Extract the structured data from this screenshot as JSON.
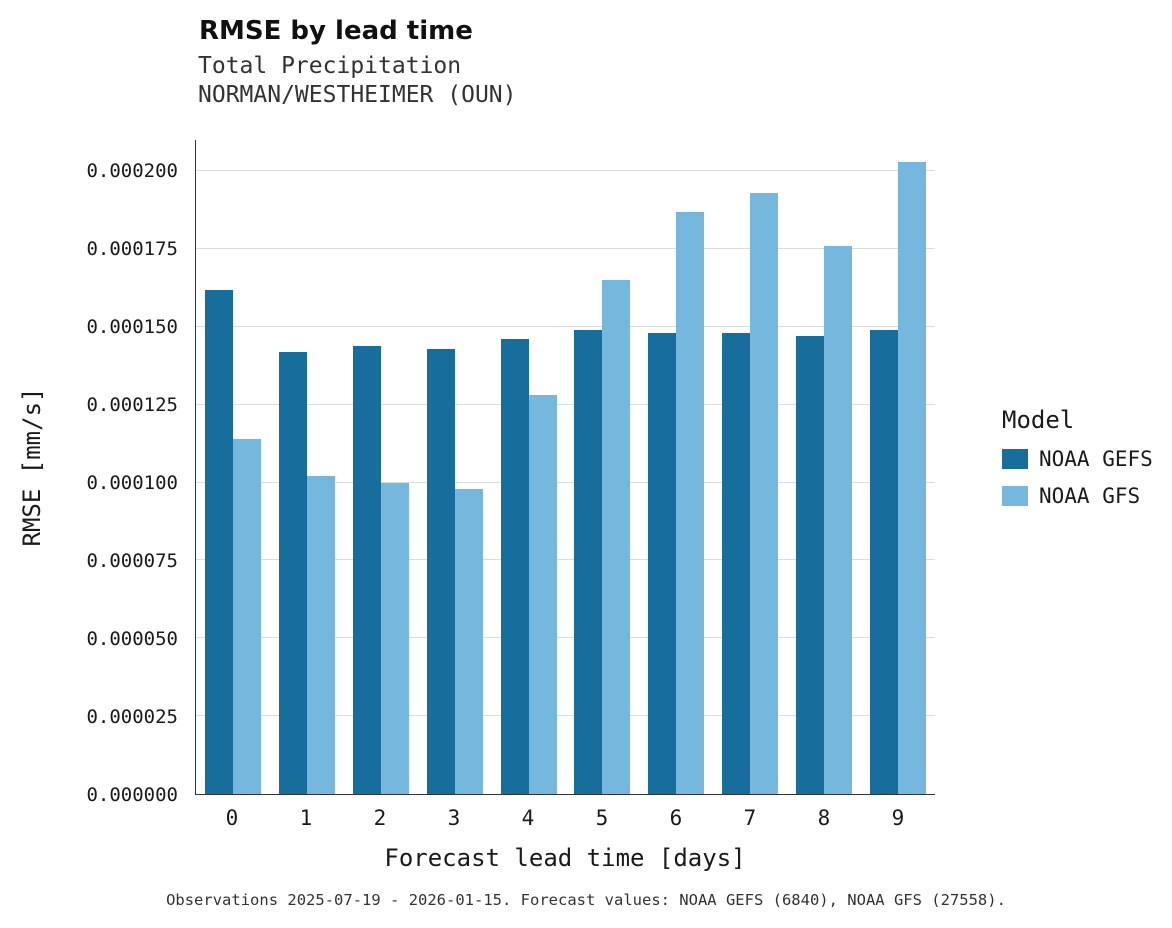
{
  "header": {
    "title": "RMSE by lead time",
    "subtitle_line1": "Total Precipitation",
    "subtitle_line2": "NORMAN/WESTHEIMER (OUN)"
  },
  "caption": "Observations 2025-07-19 - 2026-01-15. Forecast values: NOAA GEFS (6840), NOAA GFS (27558).",
  "legend": {
    "title": "Model",
    "entries": [
      {
        "label": "NOAA GEFS",
        "color": "#176d9c"
      },
      {
        "label": "NOAA GFS",
        "color": "#76b8dd"
      }
    ]
  },
  "colors": {
    "noaa_gefs": "#176d9c",
    "noaa_gfs": "#76b8dd",
    "gridline": "#dcdcdc",
    "axis": "#333333"
  },
  "chart_data": {
    "type": "bar",
    "title": "RMSE by lead time",
    "subtitle": "Total Precipitation — NORMAN/WESTHEIMER (OUN)",
    "xlabel": "Forecast lead time [days]",
    "ylabel": "RMSE [mm/s]",
    "categories": [
      "0",
      "1",
      "2",
      "3",
      "4",
      "5",
      "6",
      "7",
      "8",
      "9"
    ],
    "series": [
      {
        "name": "NOAA GEFS",
        "color": "#176d9c",
        "values": [
          0.000162,
          0.000142,
          0.000144,
          0.000143,
          0.000146,
          0.000149,
          0.000148,
          0.000148,
          0.000147,
          0.000149
        ]
      },
      {
        "name": "NOAA GFS",
        "color": "#76b8dd",
        "values": [
          0.000114,
          0.000102,
          0.0001,
          9.8e-05,
          0.000128,
          0.000165,
          0.000187,
          0.000193,
          0.000176,
          0.000203
        ]
      }
    ],
    "ylim": [
      0,
      0.00021
    ],
    "yticks": [
      0.0,
      2.5e-05,
      5e-05,
      7.5e-05,
      0.0001,
      0.000125,
      0.00015,
      0.000175,
      0.0002
    ],
    "ytick_format_decimals": 6,
    "grid": true,
    "legend_position": "right"
  }
}
